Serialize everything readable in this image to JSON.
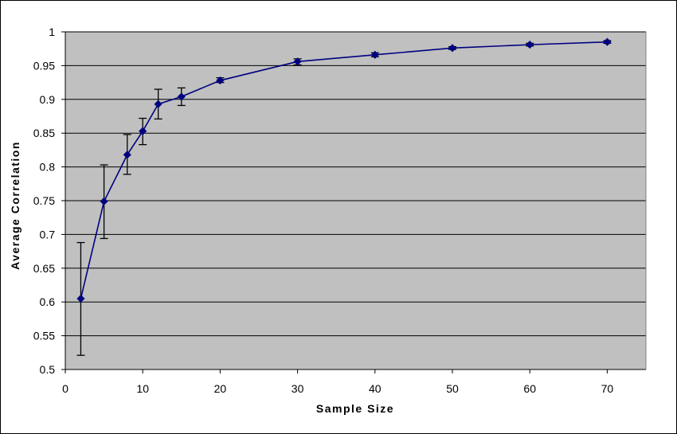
{
  "chart_data": {
    "type": "line",
    "title": "",
    "xlabel": "Sample Size",
    "ylabel": "Average Correlation",
    "xlim": [
      0,
      75
    ],
    "ylim": [
      0.5,
      1
    ],
    "x_ticks": [
      "0",
      "10",
      "20",
      "30",
      "40",
      "50",
      "60",
      "70"
    ],
    "y_ticks": [
      "0.5",
      "0.55",
      "0.6",
      "0.65",
      "0.7",
      "0.75",
      "0.8",
      "0.85",
      "0.9",
      "0.95",
      "1"
    ],
    "grid": true,
    "legend": "none",
    "colors": {
      "plot_background": "#c0c0c0",
      "line": "#000080",
      "marker": "#000080",
      "error_bar": "#000000",
      "grid": "#000000"
    },
    "series": [
      {
        "x": [
          2,
          5,
          8,
          10,
          12,
          15,
          20,
          30,
          40,
          50,
          60,
          70
        ],
        "y": [
          0.605,
          0.749,
          0.818,
          0.853,
          0.893,
          0.904,
          0.928,
          0.956,
          0.966,
          0.976,
          0.981,
          0.985
        ],
        "error_low": [
          0.521,
          0.694,
          0.789,
          0.833,
          0.871,
          0.891,
          0.925,
          0.951,
          0.963,
          0.974,
          0.979,
          0.983
        ],
        "error_high": [
          0.688,
          0.803,
          0.848,
          0.872,
          0.915,
          0.917,
          0.932,
          0.96,
          0.969,
          0.978,
          0.983,
          0.987
        ]
      }
    ]
  }
}
